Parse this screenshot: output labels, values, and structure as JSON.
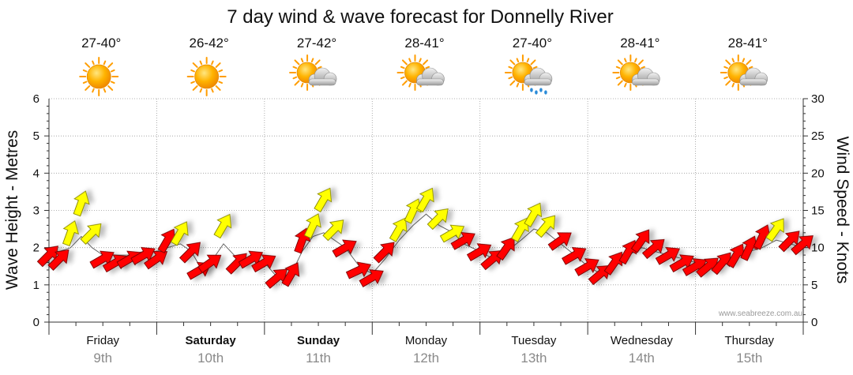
{
  "chart_data": {
    "type": "line",
    "title": "7 day wind & wave forecast for Donnelly River",
    "ylabel": "Wave Height - Metres",
    "ylabel_right": "Wind Speed - Knots",
    "ylim": [
      0,
      6
    ],
    "ylim_right": [
      0,
      30
    ],
    "yticks": [
      "0",
      "1",
      "2",
      "3",
      "4",
      "5",
      "6"
    ],
    "yticks_right": [
      "0",
      "5",
      "10",
      "15",
      "20",
      "25",
      "30"
    ],
    "watermark": "www.seabreeze.com.au",
    "days": [
      {
        "day": "Friday",
        "date": "9th",
        "bold": false,
        "temp": "27-40°",
        "weather": "sunny"
      },
      {
        "day": "Saturday",
        "date": "10th",
        "bold": true,
        "temp": "26-42°",
        "weather": "sunny"
      },
      {
        "day": "Sunday",
        "date": "11th",
        "bold": true,
        "temp": "27-42°",
        "weather": "partly-cloudy"
      },
      {
        "day": "Monday",
        "date": "12th",
        "bold": false,
        "temp": "28-41°",
        "weather": "partly-cloudy"
      },
      {
        "day": "Tuesday",
        "date": "13th",
        "bold": false,
        "temp": "27-40°",
        "weather": "showers"
      },
      {
        "day": "Wednesday",
        "date": "14th",
        "bold": false,
        "temp": "28-41°",
        "weather": "partly-cloudy"
      },
      {
        "day": "Thursday",
        "date": "15th",
        "bold": false,
        "temp": "28-41°",
        "weather": "partly-cloudy"
      }
    ],
    "wind_series": {
      "name": "Wind",
      "x_days": [
        0.0,
        0.1,
        0.2,
        0.3,
        0.4,
        0.5,
        0.62,
        0.75,
        0.88,
        1.0,
        1.1,
        1.22,
        1.32,
        1.4,
        1.5,
        1.62,
        1.75,
        1.88,
        2.0,
        2.12,
        2.25,
        2.35,
        2.45,
        2.55,
        2.65,
        2.75,
        2.88,
        3.0,
        3.12,
        3.25,
        3.38,
        3.5,
        3.62,
        3.75,
        3.85,
        4.0,
        4.12,
        4.25,
        4.38,
        4.5,
        4.62,
        4.75,
        4.88,
        5.0,
        5.12,
        5.25,
        5.38,
        5.5,
        5.62,
        5.75,
        5.88,
        6.0,
        6.12,
        6.25,
        6.38,
        6.5,
        6.62,
        6.75,
        6.88,
        7.0
      ],
      "knots": [
        9.0,
        8.5,
        12.0,
        16.0,
        12.0,
        8.5,
        8.0,
        8.5,
        9.0,
        8.5,
        11.0,
        12.0,
        9.5,
        7.0,
        8.0,
        13.0,
        8.0,
        8.5,
        8.0,
        6.0,
        6.5,
        11.0,
        13.0,
        16.5,
        12.5,
        10.0,
        7.0,
        6.0,
        9.5,
        12.5,
        15.0,
        16.5,
        14.0,
        12.0,
        11.0,
        9.5,
        8.5,
        10.0,
        12.5,
        14.5,
        13.0,
        11.0,
        9.0,
        7.5,
        6.5,
        8.0,
        9.5,
        11.0,
        10.0,
        9.0,
        8.0,
        7.5,
        7.5,
        8.0,
        9.0,
        10.0,
        11.5,
        12.5,
        11.0,
        10.5
      ],
      "direction_deg": [
        225,
        225,
        200,
        200,
        225,
        240,
        240,
        240,
        240,
        235,
        210,
        210,
        225,
        240,
        235,
        210,
        225,
        240,
        240,
        230,
        210,
        200,
        205,
        210,
        225,
        240,
        245,
        240,
        225,
        210,
        205,
        210,
        225,
        240,
        240,
        240,
        230,
        215,
        210,
        210,
        220,
        235,
        240,
        240,
        230,
        215,
        210,
        215,
        230,
        240,
        240,
        240,
        230,
        220,
        210,
        205,
        205,
        215,
        225,
        230
      ]
    },
    "wave_series": {
      "name": "Wave Height",
      "x_days": [
        0.0,
        0.1,
        0.2,
        0.3,
        0.4,
        0.5,
        0.62,
        0.75,
        0.88,
        1.0,
        1.1,
        1.22,
        1.32,
        1.4,
        1.5,
        1.62,
        1.75,
        1.88,
        2.0,
        2.12,
        2.25,
        2.35,
        2.45,
        2.55,
        2.65,
        2.75,
        2.88,
        3.0,
        3.12,
        3.25,
        3.38,
        3.5,
        3.62,
        3.75,
        3.85,
        4.0,
        4.12,
        4.25,
        4.38,
        4.5,
        4.62,
        4.75,
        4.88,
        5.0,
        5.12,
        5.25,
        5.38,
        5.5,
        5.62,
        5.75,
        5.88,
        6.0,
        6.12,
        6.25,
        6.38,
        6.5,
        6.62,
        6.75,
        6.88,
        7.0
      ],
      "metres": [
        1.9,
        1.9,
        2.0,
        2.3,
        2.0,
        1.8,
        1.8,
        1.8,
        1.9,
        1.9,
        2.0,
        2.1,
        1.9,
        1.5,
        1.6,
        2.1,
        1.7,
        1.7,
        1.6,
        1.2,
        1.3,
        1.9,
        2.3,
        2.4,
        2.2,
        2.0,
        1.5,
        1.3,
        1.7,
        2.2,
        2.6,
        2.9,
        2.6,
        2.4,
        2.1,
        1.9,
        1.7,
        1.9,
        2.2,
        2.5,
        2.4,
        2.1,
        1.8,
        1.5,
        1.3,
        1.5,
        1.8,
        2.0,
        1.9,
        1.8,
        1.7,
        1.6,
        1.5,
        1.6,
        1.8,
        1.9,
        2.0,
        2.2,
        2.1,
        2.0
      ]
    },
    "legend": "none",
    "grid": true
  }
}
